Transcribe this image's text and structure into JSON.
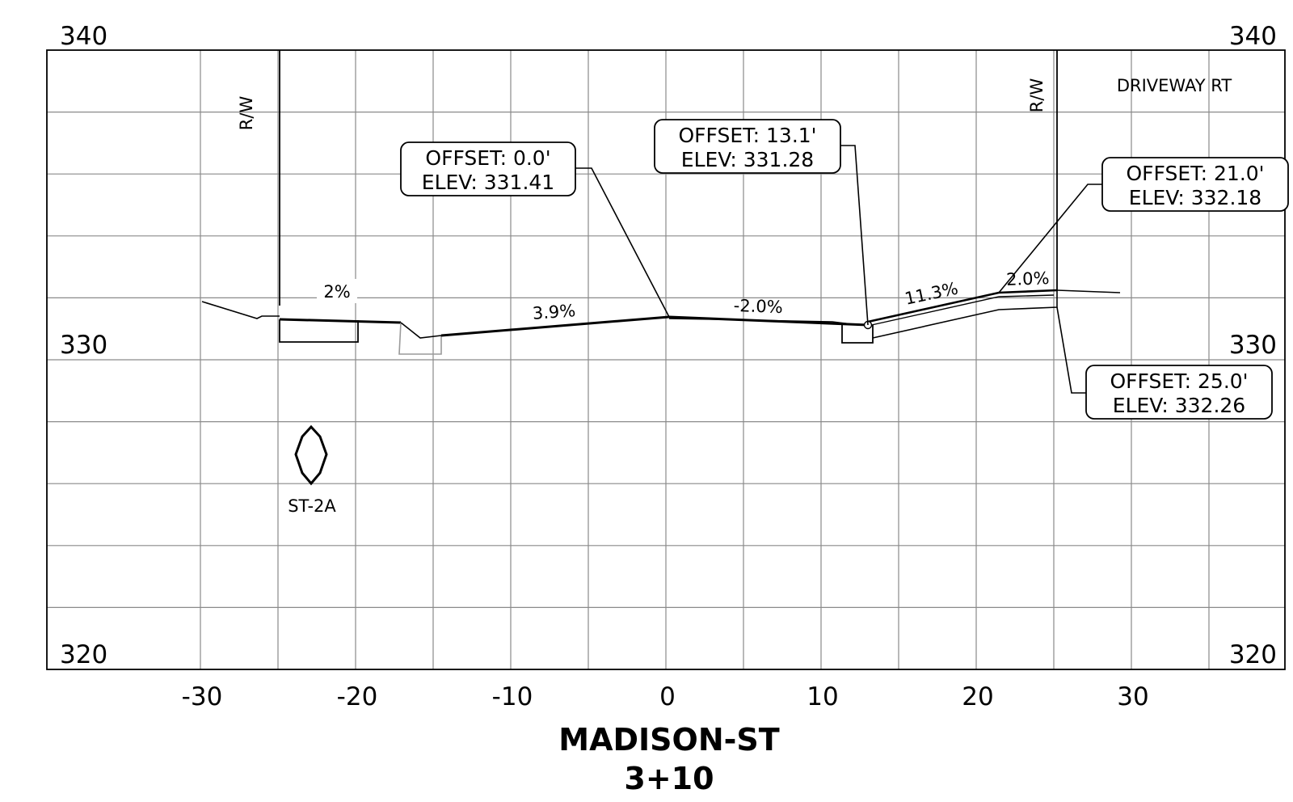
{
  "title": {
    "street": "MADISON-ST",
    "station": "3+10"
  },
  "axes": {
    "x_ticks": [
      "-30",
      "-20",
      "-10",
      "0",
      "10",
      "20",
      "30"
    ],
    "y_labels_left": [
      "340",
      "330",
      "320"
    ],
    "y_labels_right": [
      "340",
      "330",
      "320"
    ]
  },
  "labels": {
    "rw_left": "R/W",
    "rw_right": "R/W",
    "driveway": "DRIVEWAY RT",
    "structure": "ST-2A"
  },
  "slopes": [
    "2%",
    "3.9%",
    "-2.0%",
    "11.3%",
    "2.0%"
  ],
  "callouts": [
    {
      "offset": "OFFSET: 0.0'",
      "elev": "ELEV: 331.41"
    },
    {
      "offset": "OFFSET: 13.1'",
      "elev": "ELEV: 331.28"
    },
    {
      "offset": "OFFSET: 21.0'",
      "elev": "ELEV: 332.18"
    },
    {
      "offset": "OFFSET: 25.0'",
      "elev": "ELEV: 332.26"
    }
  ],
  "profile_points": [
    {
      "offset": -30,
      "elev": 331.95
    },
    {
      "offset": -27,
      "elev": 331.35
    },
    {
      "offset": -25,
      "elev": 331.35
    },
    {
      "offset": -17,
      "elev": 331.2
    },
    {
      "offset": -15,
      "elev": 330.8
    },
    {
      "offset": 0,
      "elev": 331.41
    },
    {
      "offset": 13.1,
      "elev": 331.28
    },
    {
      "offset": 21.0,
      "elev": 332.18
    },
    {
      "offset": 25.0,
      "elev": 332.26
    },
    {
      "offset": 29.0,
      "elev": 332.2
    }
  ]
}
